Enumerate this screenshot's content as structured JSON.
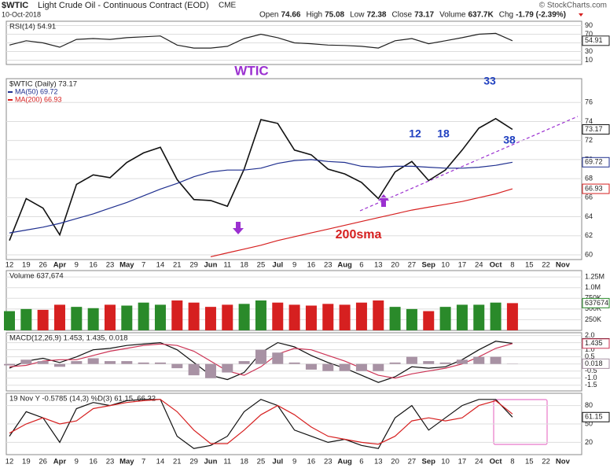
{
  "header": {
    "symbol": "$WTIC",
    "name": "Light Crude Oil - Continuous Contract (EOD)",
    "exchange": "CME",
    "date": "10-Oct-2018",
    "watermark": "© StockCharts.com",
    "quote": [
      {
        "label": "Open",
        "value": "74.66"
      },
      {
        "label": "High",
        "value": "75.08"
      },
      {
        "label": "Low",
        "value": "72.38"
      },
      {
        "label": "Close",
        "value": "73.17"
      },
      {
        "label": "Volume",
        "value": "637.7K"
      },
      {
        "label": "Chg",
        "value": "-1.79 (-2.39%)"
      }
    ]
  },
  "chart_data": [
    {
      "type": "line",
      "title": "RSI(14) 54.91",
      "ylim": [
        0,
        100
      ],
      "yticks": [
        10,
        30,
        50,
        70,
        90
      ],
      "grid": true,
      "series": [
        {
          "name": "RSI(14)",
          "color": "#222",
          "box": true,
          "values": [
            45,
            55,
            50,
            40,
            58,
            60,
            58,
            62,
            64,
            66,
            45,
            38,
            38,
            42,
            60,
            70,
            62,
            50,
            48,
            45,
            44,
            42,
            38,
            55,
            60,
            48,
            55,
            62,
            70,
            72,
            54.91,
            null,
            null,
            null
          ]
        }
      ]
    },
    {
      "type": "line",
      "title": "$WTIC (Daily) 73.17",
      "ylim": [
        59.5,
        78.5
      ],
      "yticks": [
        60,
        62,
        64,
        66,
        68,
        70,
        72,
        74,
        76
      ],
      "grid": true,
      "categories": [
        "12",
        "19",
        "26",
        "Apr",
        "9",
        "16",
        "23",
        "May",
        "7",
        "14",
        "21",
        "29",
        "Jun",
        "11",
        "18",
        "25",
        "Jul",
        "9",
        "16",
        "23",
        "Aug",
        "6",
        "13",
        "20",
        "27",
        "Sep",
        "10",
        "17",
        "24",
        "Oct",
        "8",
        "15",
        "22",
        "Nov"
      ],
      "series": [
        {
          "name": "$WTIC (Daily) 73.17",
          "color": "#111",
          "box": true,
          "values": [
            61.5,
            65.9,
            64.9,
            62.1,
            67.4,
            68.4,
            68.1,
            69.7,
            70.7,
            71.3,
            67.9,
            65.8,
            65.7,
            65.1,
            69.0,
            74.2,
            73.8,
            71.0,
            70.5,
            69.0,
            68.5,
            67.6,
            65.9,
            68.7,
            69.8,
            67.8,
            68.9,
            71.0,
            73.3,
            74.3,
            73.17,
            null,
            null,
            null
          ]
        },
        {
          "name": "MA(50) 69.72",
          "color": "#1f2f8f",
          "box": true,
          "values": [
            62.3,
            62.6,
            62.9,
            63.3,
            63.8,
            64.3,
            64.9,
            65.5,
            66.2,
            66.9,
            67.5,
            68.2,
            68.7,
            68.9,
            68.9,
            69.1,
            69.6,
            69.9,
            70.0,
            69.8,
            69.7,
            69.3,
            69.2,
            69.3,
            69.3,
            69.2,
            69.1,
            69.1,
            69.2,
            69.4,
            69.72,
            null,
            null,
            null
          ]
        },
        {
          "name": "MA(200) 66.93",
          "color": "#d62020",
          "box": true,
          "values": [
            null,
            null,
            null,
            null,
            null,
            null,
            null,
            null,
            null,
            null,
            null,
            null,
            59.8,
            60.2,
            60.6,
            61.0,
            61.5,
            61.9,
            62.3,
            62.7,
            63.1,
            63.5,
            63.9,
            64.3,
            64.7,
            65.0,
            65.3,
            65.6,
            66.0,
            66.4,
            66.93,
            null,
            null,
            null
          ]
        }
      ],
      "annotations": [
        {
          "text": "WTIC",
          "color": "#9b30d0"
        },
        {
          "text": "33",
          "color": "#2040c0"
        },
        {
          "text": "12",
          "color": "#2040c0"
        },
        {
          "text": "18",
          "color": "#2040c0"
        },
        {
          "text": "38",
          "color": "#2040c0"
        },
        {
          "text": "200sma",
          "color": "#d62020"
        }
      ]
    },
    {
      "type": "bar",
      "title": "Volume 637,674",
      "ylim": [
        0,
        1400000
      ],
      "yticks": [
        {
          "value": 250000,
          "label": "250K"
        },
        {
          "value": 500000,
          "label": "500K"
        },
        {
          "value": 750000,
          "label": "750K"
        },
        {
          "value": 1000000,
          "label": "1.0M"
        },
        {
          "value": 1250000,
          "label": "1.25M"
        }
      ],
      "grid": true,
      "series": [
        {
          "name": "Volume",
          "color": "#2a8a2a",
          "box": true,
          "values": [
            450000,
            500000,
            480000,
            600000,
            550000,
            520000,
            600000,
            580000,
            650000,
            600000,
            700000,
            650000,
            550000,
            600000,
            620000,
            700000,
            650000,
            600000,
            580000,
            620000,
            600000,
            650000,
            700000,
            550000,
            500000,
            450000,
            550000,
            600000,
            600000,
            650000,
            637674,
            null,
            null,
            null
          ],
          "colors": [
            "#2a8a2a",
            "#2a8a2a",
            "#d62020",
            "#d62020",
            "#2a8a2a",
            "#2a8a2a",
            "#d62020",
            "#2a8a2a",
            "#2a8a2a",
            "#2a8a2a",
            "#d62020",
            "#d62020",
            "#d62020",
            "#d62020",
            "#2a8a2a",
            "#2a8a2a",
            "#d62020",
            "#d62020",
            "#d62020",
            "#d62020",
            "#d62020",
            "#d62020",
            "#d62020",
            "#2a8a2a",
            "#2a8a2a",
            "#d62020",
            "#2a8a2a",
            "#2a8a2a",
            "#2a8a2a",
            "#2a8a2a",
            "#d62020",
            "#d62020",
            "#d62020",
            "#d62020"
          ]
        }
      ]
    },
    {
      "type": "line",
      "title": "MACD(12,26,9) 1.453, 1.435, 0.018",
      "ylim": [
        -1.9,
        2.2
      ],
      "yticks": [
        {
          "value": -1.5,
          "label": "-1.5"
        },
        {
          "value": -1,
          "label": "-1.0"
        },
        {
          "value": -0.5,
          "label": "-0.5"
        },
        {
          "value": 0,
          "label": "0.0"
        },
        {
          "value": 0.5,
          "label": "0.5"
        },
        {
          "value": 1,
          "label": "1.0"
        },
        {
          "value": 1.5,
          "label": "1.5"
        },
        {
          "value": 2,
          "label": "2.0"
        }
      ],
      "grid": true,
      "series": [
        {
          "name": "MACD",
          "type": "line",
          "color": "#111",
          "box": true,
          "values": [
            -0.3,
            0.2,
            0.4,
            0.1,
            0.5,
            1.0,
            1.1,
            1.3,
            1.4,
            1.5,
            1.0,
            0.1,
            -0.8,
            -1.1,
            -0.6,
            0.8,
            1.5,
            1.2,
            0.6,
            0.1,
            -0.3,
            -0.8,
            -1.3,
            -0.9,
            -0.2,
            -0.3,
            -0.2,
            0.3,
            1.0,
            1.6,
            1.453,
            null,
            null,
            null
          ]
        },
        {
          "name": "Signal",
          "type": "line",
          "color": "#cc3355",
          "box": true,
          "values": [
            -0.2,
            -0.1,
            0.2,
            0.3,
            0.3,
            0.6,
            0.9,
            1.1,
            1.3,
            1.4,
            1.3,
            0.9,
            0.2,
            -0.5,
            -0.8,
            -0.2,
            0.7,
            1.1,
            1.0,
            0.6,
            0.2,
            -0.3,
            -0.8,
            -1.0,
            -0.7,
            -0.5,
            -0.3,
            0.0,
            0.5,
            1.1,
            1.435,
            null,
            null,
            null
          ]
        },
        {
          "name": "Histogram",
          "type": "bar",
          "color": "#a892a4",
          "box": true,
          "values": [
            -0.1,
            0.3,
            0.2,
            -0.2,
            0.2,
            0.4,
            0.2,
            0.2,
            0.1,
            0.1,
            -0.3,
            -0.8,
            -1.0,
            -0.6,
            0.2,
            1.0,
            0.8,
            0.1,
            -0.4,
            -0.5,
            -0.5,
            -0.5,
            -0.5,
            0.1,
            0.5,
            0.2,
            0.1,
            0.3,
            0.5,
            0.5,
            0.018,
            null,
            null,
            null
          ]
        }
      ]
    },
    {
      "type": "line",
      "title": "19 Nov Y -0.5785 (14,3) %D(3) 61.15, 66.32",
      "ylim": [
        0,
        100
      ],
      "yticks": [
        20,
        50,
        80
      ],
      "grid": true,
      "categories": [
        "12",
        "19",
        "26",
        "Apr",
        "9",
        "16",
        "23",
        "May",
        "7",
        "14",
        "21",
        "29",
        "Jun",
        "11",
        "18",
        "25",
        "Jul",
        "9",
        "16",
        "23",
        "Aug",
        "6",
        "13",
        "20",
        "27",
        "Sep",
        "10",
        "17",
        "24",
        "Oct",
        "8",
        "15",
        "22",
        "Nov"
      ],
      "series": [
        {
          "name": "%K",
          "color": "#111",
          "box": true,
          "values": [
            30,
            70,
            60,
            20,
            75,
            85,
            80,
            88,
            90,
            90,
            30,
            10,
            15,
            30,
            70,
            90,
            80,
            40,
            30,
            20,
            25,
            15,
            10,
            60,
            80,
            40,
            60,
            80,
            90,
            90,
            61.15,
            null,
            null,
            null
          ]
        },
        {
          "name": "%D",
          "color": "#d62020",
          "box": false,
          "values": [
            35,
            50,
            60,
            50,
            55,
            75,
            80,
            85,
            88,
            90,
            70,
            40,
            18,
            18,
            40,
            65,
            80,
            65,
            45,
            30,
            25,
            20,
            17,
            30,
            55,
            60,
            55,
            60,
            80,
            88,
            66.32,
            null,
            null,
            null
          ]
        }
      ]
    }
  ]
}
